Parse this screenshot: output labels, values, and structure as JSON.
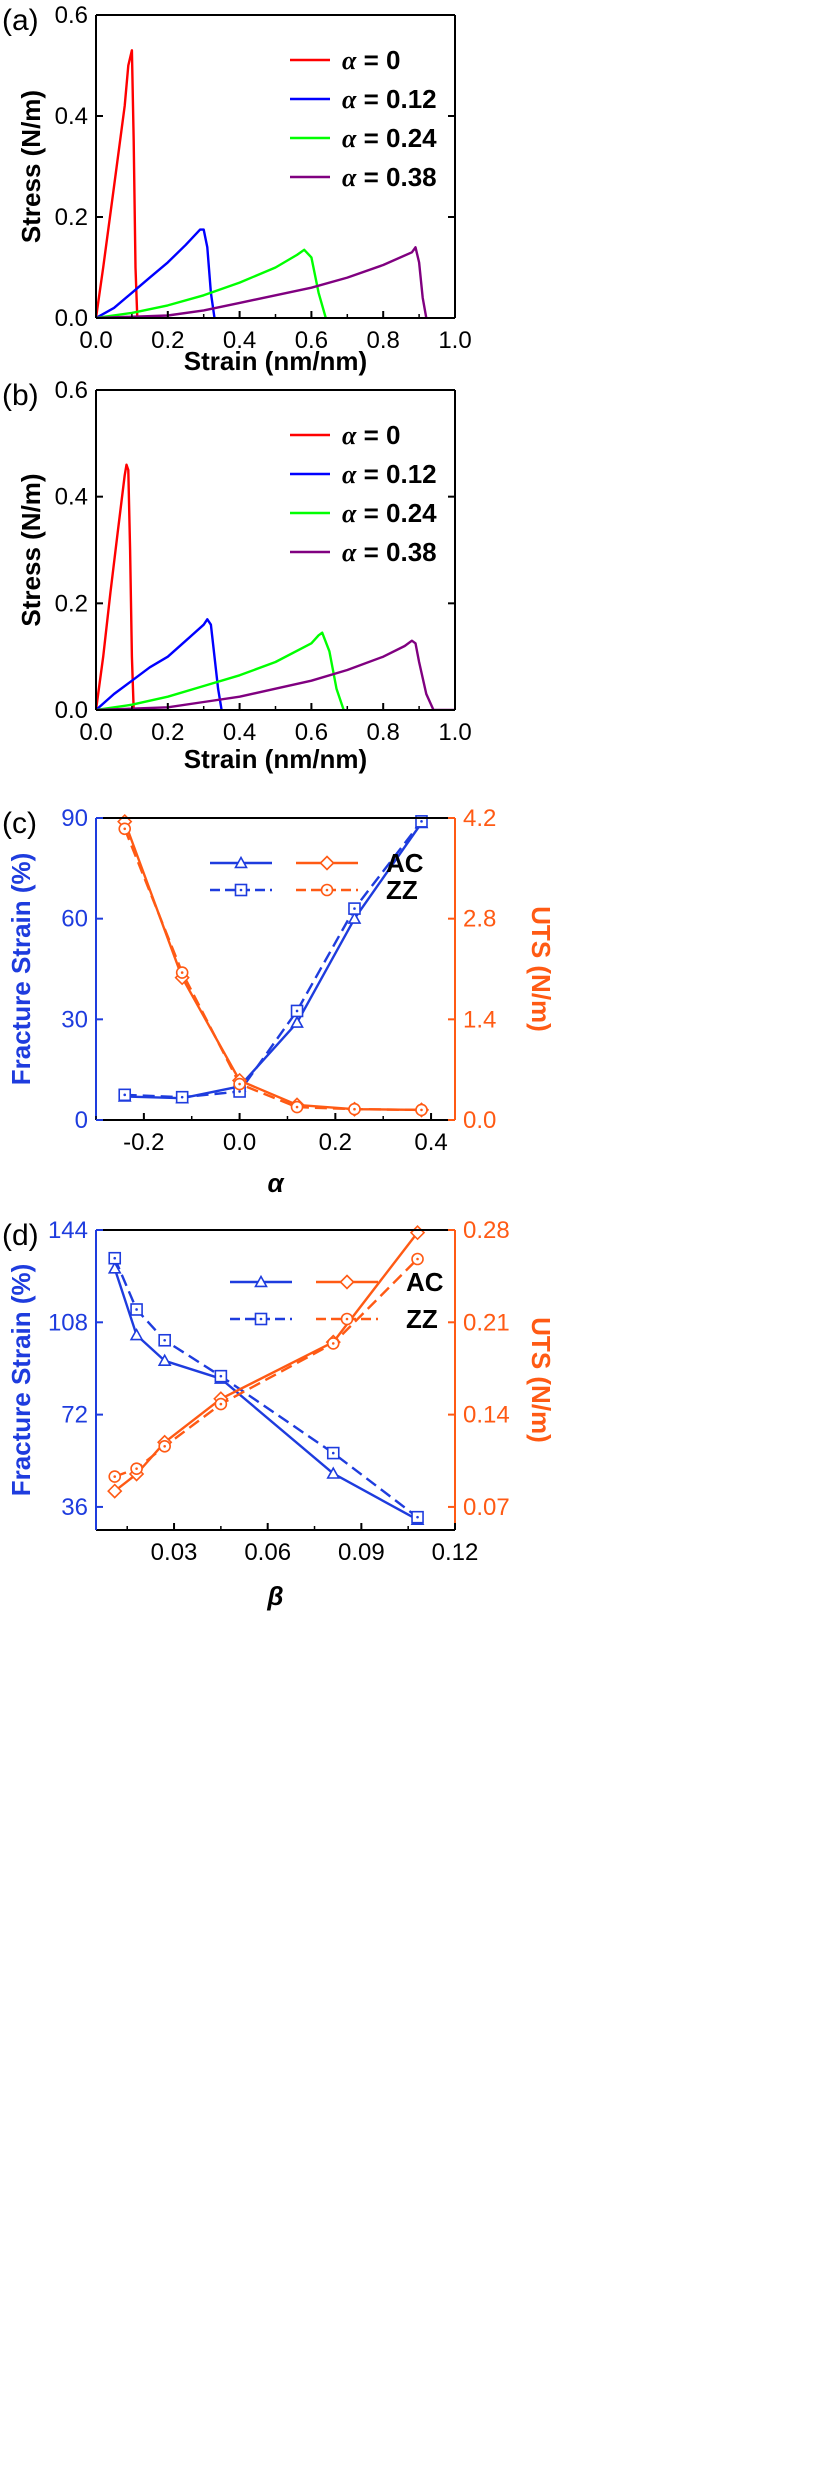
{
  "chart_data": [
    {
      "panel": "(a)",
      "type": "line",
      "xlabel": "Strain (nm/nm)",
      "ylabel": "Stress (N/m)",
      "xlim": [
        0,
        1.0
      ],
      "ylim": [
        0,
        0.6
      ],
      "xticks": [
        "0.0",
        "0.2",
        "0.4",
        "0.6",
        "0.8",
        "1.0"
      ],
      "yticks": [
        "0.0",
        "0.2",
        "0.4",
        "0.6"
      ],
      "legend_position": "top-right",
      "series": [
        {
          "name": "α = 0",
          "prefix": "α",
          "suffix": " = 0",
          "color": "#ff0000",
          "x": [
            0,
            0.02,
            0.05,
            0.08,
            0.09,
            0.1,
            0.105,
            0.11,
            0.115
          ],
          "y": [
            0,
            0.1,
            0.26,
            0.42,
            0.5,
            0.53,
            0.35,
            0.1,
            0
          ]
        },
        {
          "name": "α = 0.12",
          "prefix": "α",
          "suffix": " = 0.12",
          "color": "#0000ff",
          "x": [
            0,
            0.05,
            0.1,
            0.15,
            0.2,
            0.25,
            0.29,
            0.3,
            0.31,
            0.32,
            0.33
          ],
          "y": [
            0,
            0.02,
            0.05,
            0.08,
            0.11,
            0.145,
            0.175,
            0.175,
            0.14,
            0.05,
            0
          ]
        },
        {
          "name": "α = 0.24",
          "prefix": "α",
          "suffix": " = 0.24",
          "color": "#00ff00",
          "x": [
            0,
            0.1,
            0.2,
            0.3,
            0.4,
            0.5,
            0.56,
            0.58,
            0.6,
            0.62,
            0.64
          ],
          "y": [
            0,
            0.01,
            0.025,
            0.045,
            0.07,
            0.1,
            0.125,
            0.135,
            0.12,
            0.05,
            0
          ]
        },
        {
          "name": "α = 0.38",
          "prefix": "α",
          "suffix": " = 0.38",
          "color": "#800080",
          "x": [
            0,
            0.2,
            0.3,
            0.4,
            0.5,
            0.6,
            0.7,
            0.8,
            0.88,
            0.89,
            0.9,
            0.91,
            0.92
          ],
          "y": [
            0,
            0.005,
            0.015,
            0.03,
            0.045,
            0.06,
            0.08,
            0.105,
            0.13,
            0.14,
            0.11,
            0.04,
            0
          ]
        }
      ]
    },
    {
      "panel": "(b)",
      "type": "line",
      "xlabel": "Strain (nm/nm)",
      "ylabel": "Stress (N/m)",
      "xlim": [
        0,
        1.0
      ],
      "ylim": [
        0,
        0.6
      ],
      "xticks": [
        "0.0",
        "0.2",
        "0.4",
        "0.6",
        "0.8",
        "1.0"
      ],
      "yticks": [
        "0.0",
        "0.2",
        "0.4",
        "0.6"
      ],
      "legend_position": "top-right",
      "series": [
        {
          "name": "α = 0",
          "prefix": "α",
          "suffix": " = 0",
          "color": "#ff0000",
          "x": [
            0,
            0.02,
            0.04,
            0.06,
            0.08,
            0.085,
            0.09,
            0.095,
            0.1,
            0.105
          ],
          "y": [
            0,
            0.1,
            0.22,
            0.33,
            0.44,
            0.46,
            0.45,
            0.3,
            0.1,
            0
          ]
        },
        {
          "name": "α = 0.12",
          "prefix": "α",
          "suffix": " = 0.12",
          "color": "#0000ff",
          "x": [
            0,
            0.05,
            0.1,
            0.15,
            0.2,
            0.25,
            0.3,
            0.31,
            0.32,
            0.33,
            0.34,
            0.35
          ],
          "y": [
            0,
            0.03,
            0.055,
            0.08,
            0.1,
            0.13,
            0.16,
            0.17,
            0.16,
            0.1,
            0.04,
            0
          ]
        },
        {
          "name": "α = 0.24",
          "prefix": "α",
          "suffix": " = 0.24",
          "color": "#00ff00",
          "x": [
            0,
            0.1,
            0.2,
            0.3,
            0.4,
            0.5,
            0.6,
            0.62,
            0.63,
            0.65,
            0.67,
            0.69
          ],
          "y": [
            0,
            0.01,
            0.025,
            0.045,
            0.065,
            0.09,
            0.125,
            0.14,
            0.145,
            0.11,
            0.04,
            0
          ]
        },
        {
          "name": "α = 0.38",
          "prefix": "α",
          "suffix": " = 0.38",
          "color": "#800080",
          "x": [
            0,
            0.2,
            0.3,
            0.4,
            0.5,
            0.6,
            0.7,
            0.8,
            0.86,
            0.88,
            0.89,
            0.9,
            0.92,
            0.94,
            1.0
          ],
          "y": [
            0,
            0.005,
            0.015,
            0.025,
            0.04,
            0.055,
            0.075,
            0.1,
            0.12,
            0.13,
            0.125,
            0.09,
            0.03,
            0,
            0
          ]
        }
      ]
    },
    {
      "panel": "(c)",
      "type": "line",
      "xlabel": "α",
      "ylabel_left": "Fracture Strain (%)",
      "ylabel_right": "UTS (N/m)",
      "xlim": [
        -0.3,
        0.45
      ],
      "ylim_left": [
        0,
        90
      ],
      "ylim_right": [
        0,
        4.2
      ],
      "xticks": [
        "-0.2",
        "0.0",
        "0.2",
        "0.4"
      ],
      "yticks_left": [
        "0",
        "30",
        "60",
        "90"
      ],
      "yticks_right": [
        "0.0",
        "1.4",
        "2.8",
        "4.2"
      ],
      "legend_position": "top-center",
      "legend": [
        "AC",
        "ZZ"
      ],
      "series": [
        {
          "name": "AC",
          "axis": "left",
          "color": "#1e3cde",
          "marker": "triangle",
          "dash": false,
          "x": [
            -0.24,
            -0.12,
            0.0,
            0.12,
            0.24,
            0.38
          ],
          "y": [
            7,
            6.5,
            10,
            29,
            60,
            88.5
          ]
        },
        {
          "name": "ZZ",
          "axis": "left",
          "color": "#1e3cde",
          "marker": "square",
          "dash": true,
          "x": [
            -0.24,
            -0.12,
            0.0,
            0.12,
            0.24,
            0.38
          ],
          "y": [
            7.5,
            6.8,
            8.5,
            32.5,
            63,
            89
          ]
        },
        {
          "name": "AC",
          "axis": "right",
          "color": "#ff5a14",
          "marker": "diamond",
          "dash": false,
          "x": [
            -0.24,
            -0.12,
            0.0,
            0.12,
            0.24,
            0.38
          ],
          "y": [
            4.15,
            1.98,
            0.55,
            0.21,
            0.15,
            0.14
          ]
        },
        {
          "name": "ZZ",
          "axis": "right",
          "color": "#ff5a14",
          "marker": "circle",
          "dash": true,
          "x": [
            -0.24,
            -0.12,
            0.0,
            0.12,
            0.24,
            0.38
          ],
          "y": [
            4.05,
            2.05,
            0.5,
            0.18,
            0.15,
            0.14
          ]
        }
      ]
    },
    {
      "panel": "(d)",
      "type": "line",
      "xlabel": "β",
      "ylabel_left": "Fracture Strain (%)",
      "ylabel_right": "UTS (N/m)",
      "xlim": [
        0.005,
        0.12
      ],
      "ylim_left": [
        27,
        144
      ],
      "ylim_right": [
        0.0525,
        0.28
      ],
      "xticks": [
        "0.03",
        "0.06",
        "0.09",
        "0.12"
      ],
      "yticks_left": [
        "36",
        "72",
        "108",
        "144"
      ],
      "yticks_right": [
        "0.07",
        "0.14",
        "0.21",
        "0.28"
      ],
      "legend_position": "top-center",
      "legend": [
        "AC",
        "ZZ"
      ],
      "series": [
        {
          "name": "AC",
          "axis": "left",
          "color": "#1e3cde",
          "marker": "triangle",
          "dash": false,
          "x": [
            0.011,
            0.018,
            0.027,
            0.045,
            0.081,
            0.108
          ],
          "y": [
            129,
            103,
            93,
            86,
            49,
            31
          ]
        },
        {
          "name": "ZZ",
          "axis": "left",
          "color": "#1e3cde",
          "marker": "square",
          "dash": true,
          "x": [
            0.011,
            0.018,
            0.027,
            0.045,
            0.081,
            0.108
          ],
          "y": [
            133,
            113,
            101,
            87,
            57,
            32
          ]
        },
        {
          "name": "AC",
          "axis": "right",
          "color": "#ff5a14",
          "marker": "diamond",
          "dash": false,
          "x": [
            0.011,
            0.018,
            0.027,
            0.045,
            0.081,
            0.108
          ],
          "y": [
            0.082,
            0.095,
            0.119,
            0.152,
            0.195,
            0.278
          ]
        },
        {
          "name": "ZZ",
          "axis": "right",
          "color": "#ff5a14",
          "marker": "circle",
          "dash": true,
          "x": [
            0.011,
            0.018,
            0.027,
            0.045,
            0.081,
            0.108
          ],
          "y": [
            0.093,
            0.099,
            0.116,
            0.148,
            0.194,
            0.258
          ]
        }
      ]
    }
  ]
}
